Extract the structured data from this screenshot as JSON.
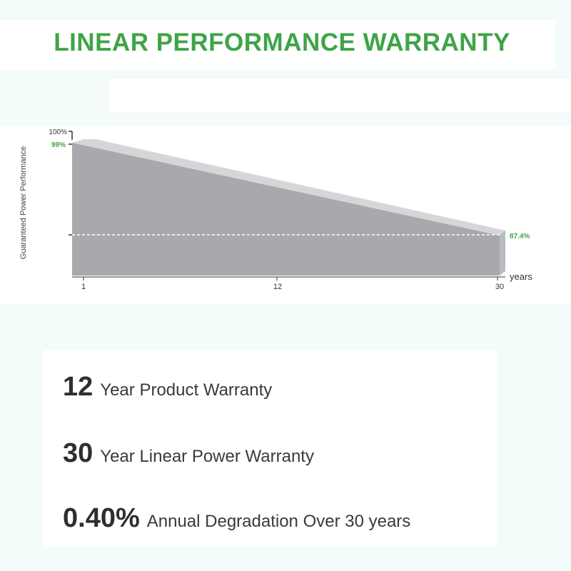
{
  "title": "LINEAR PERFORMANCE WARRANTY",
  "chart_data": {
    "type": "area",
    "title": "LINEAR PERFORMANCE WARRANTY",
    "ylabel": "Guaranteed Power Performance",
    "xlabel": "years",
    "x_ticks": [
      "1",
      "12",
      "30"
    ],
    "y_ticks": [
      "100%"
    ],
    "series": [
      {
        "x": [
          1,
          30
        ],
        "y": [
          99,
          87.4
        ]
      }
    ],
    "annotations": [
      {
        "text": "99%",
        "x": 1,
        "y": 99
      },
      {
        "text": "87.4%",
        "x": 30,
        "y": 87.4
      }
    ],
    "reference_line": {
      "y": 87.4,
      "style": "dashed"
    },
    "colors": {
      "area": "#a7a9ad",
      "area_top": "#d6d6d8",
      "accent": "#3fa447"
    }
  },
  "stats": [
    {
      "number": "12",
      "label": "Year Product Warranty"
    },
    {
      "number": "30",
      "label": "Year Linear Power Warranty"
    },
    {
      "number": "0.40%",
      "label": "Annual Degradation Over 30 years"
    }
  ]
}
